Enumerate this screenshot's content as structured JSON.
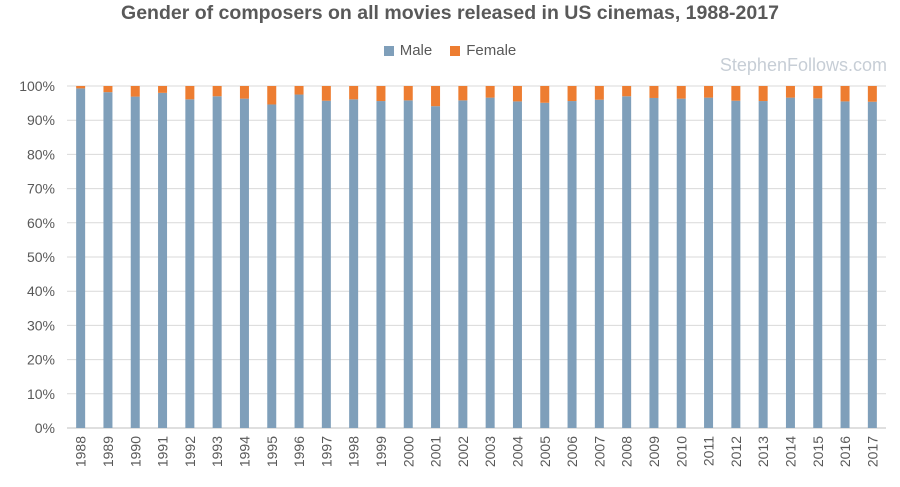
{
  "watermark": "StephenFollows.com",
  "chart_data": {
    "type": "bar",
    "stacked": true,
    "title": "Gender of composers on all movies released in US cinemas, 1988-2017",
    "xlabel": "",
    "ylabel": "",
    "ylim": [
      0,
      100
    ],
    "y_ticks": [
      "0%",
      "10%",
      "20%",
      "30%",
      "40%",
      "50%",
      "60%",
      "70%",
      "80%",
      "90%",
      "100%"
    ],
    "grid": true,
    "legend_position": "top",
    "categories": [
      "1988",
      "1989",
      "1990",
      "1991",
      "1992",
      "1993",
      "1994",
      "1995",
      "1996",
      "1997",
      "1998",
      "1999",
      "2000",
      "2001",
      "2002",
      "2003",
      "2004",
      "2005",
      "2006",
      "2007",
      "2008",
      "2009",
      "2010",
      "2011",
      "2012",
      "2013",
      "2014",
      "2015",
      "2016",
      "2017"
    ],
    "series": [
      {
        "name": "Male",
        "color": "#7f9fba",
        "values": [
          99.3,
          98.2,
          96.9,
          98.0,
          96.1,
          97.0,
          96.3,
          94.6,
          97.5,
          95.7,
          96.1,
          95.6,
          95.8,
          94.1,
          95.8,
          96.6,
          95.5,
          95.1,
          95.6,
          96.0,
          97.0,
          96.5,
          96.3,
          96.6,
          95.7,
          95.6,
          96.6,
          96.4,
          95.5,
          95.4
        ]
      },
      {
        "name": "Female",
        "color": "#ed7d31",
        "values": [
          0.7,
          1.8,
          3.1,
          2.0,
          3.9,
          3.0,
          3.7,
          5.4,
          2.5,
          4.3,
          3.9,
          4.4,
          4.2,
          5.9,
          4.2,
          3.4,
          4.5,
          4.9,
          4.4,
          4.0,
          3.0,
          3.5,
          3.7,
          3.4,
          4.3,
          4.4,
          3.4,
          3.6,
          4.5,
          4.6
        ]
      }
    ]
  }
}
